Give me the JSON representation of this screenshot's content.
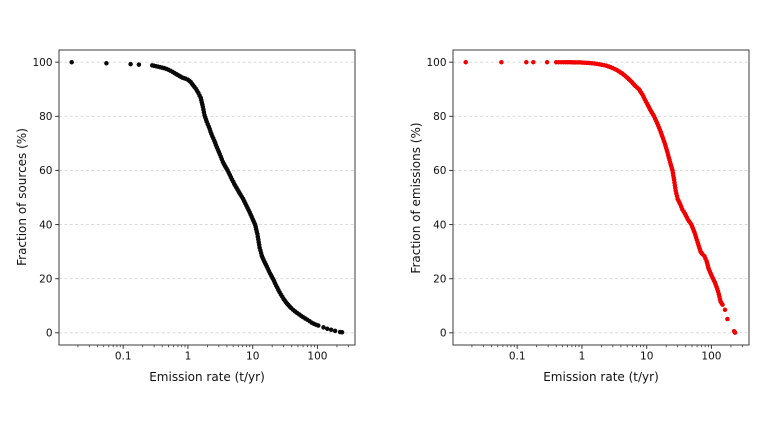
{
  "figure": {
    "background": "#ffffff",
    "grid_color": "#d5d5d5",
    "spine_color": "#3d3d3d",
    "tick_label_color": "#111111"
  },
  "chart_data": [
    {
      "type": "scatter",
      "title": "",
      "xlabel": "Emission rate (t/yr)",
      "ylabel": "Fraction of sources (%)",
      "x_scale": "log",
      "xlim": [
        0.0102,
        380
      ],
      "ylim": [
        -4.5,
        104.5
      ],
      "x_major_ticks": [
        0.1,
        1,
        10,
        100
      ],
      "x_major_tick_labels": [
        "0.1",
        "1",
        "10",
        "100"
      ],
      "y_ticks": [
        0,
        20,
        40,
        60,
        80,
        100
      ],
      "y_tick_labels": [
        "0",
        "20",
        "40",
        "60",
        "80",
        "100"
      ],
      "grid": "horizontal-dashed",
      "legend": "none",
      "marker_color": "#0a0a0a",
      "marker_size_px": 4.5,
      "dense_range": [
        0.27,
        101
      ],
      "points": [
        [
          0.016,
          100
        ],
        [
          0.055,
          99.6
        ],
        [
          0.13,
          99.3
        ],
        [
          0.175,
          99.1
        ],
        [
          0.28,
          98.8
        ],
        [
          0.32,
          98.5
        ],
        [
          0.37,
          98.2
        ],
        [
          0.43,
          97.8
        ],
        [
          0.5,
          97.2
        ],
        [
          0.58,
          96.4
        ],
        [
          0.66,
          95.6
        ],
        [
          0.74,
          94.9
        ],
        [
          0.82,
          94.3
        ],
        [
          0.92,
          93.9
        ],
        [
          1.0,
          93.5
        ],
        [
          1.1,
          92.7
        ],
        [
          1.2,
          91.5
        ],
        [
          1.32,
          90.2
        ],
        [
          1.45,
          88.6
        ],
        [
          1.58,
          86.8
        ],
        [
          1.7,
          83.5
        ],
        [
          1.8,
          80.5
        ],
        [
          1.95,
          78.0
        ],
        [
          2.1,
          76.2
        ],
        [
          2.3,
          73.5
        ],
        [
          2.55,
          71.0
        ],
        [
          2.8,
          68.5
        ],
        [
          3.1,
          66.0
        ],
        [
          3.45,
          63.2
        ],
        [
          3.8,
          61.3
        ],
        [
          4.1,
          60.0
        ],
        [
          4.6,
          57.5
        ],
        [
          5.2,
          55.0
        ],
        [
          5.8,
          53.0
        ],
        [
          6.5,
          51.0
        ],
        [
          7.1,
          49.5
        ],
        [
          8.0,
          47.0
        ],
        [
          9.0,
          44.5
        ],
        [
          10.0,
          42.0
        ],
        [
          10.9,
          40.0
        ],
        [
          11.8,
          36.5
        ],
        [
          12.8,
          31.5
        ],
        [
          13.8,
          28.5
        ],
        [
          15.0,
          26.5
        ],
        [
          16.5,
          24.5
        ],
        [
          18.5,
          22.0
        ],
        [
          20.5,
          20.0
        ],
        [
          23.0,
          17.5
        ],
        [
          26.0,
          15.0
        ],
        [
          30.0,
          12.5
        ],
        [
          34.0,
          10.8
        ],
        [
          39.0,
          9.2
        ],
        [
          45.0,
          7.9
        ],
        [
          52.0,
          6.8
        ],
        [
          60.0,
          5.8
        ],
        [
          70.0,
          4.8
        ],
        [
          82.0,
          3.7
        ],
        [
          95.0,
          3.0
        ],
        [
          103,
          2.7
        ],
        [
          124,
          2.0
        ],
        [
          142,
          1.5
        ],
        [
          163,
          1.1
        ],
        [
          187,
          0.7
        ],
        [
          224,
          0.3
        ],
        [
          240,
          0.2
        ]
      ]
    },
    {
      "type": "scatter",
      "title": "",
      "xlabel": "Emission rate (t/yr)",
      "ylabel": "Fraction of emissions (%)",
      "x_scale": "log",
      "xlim": [
        0.0102,
        380
      ],
      "ylim": [
        -4.5,
        104.5
      ],
      "x_major_ticks": [
        0.1,
        1,
        10,
        100
      ],
      "x_major_tick_labels": [
        "0.1",
        "1",
        "10",
        "100"
      ],
      "y_ticks": [
        0,
        20,
        40,
        60,
        80,
        100
      ],
      "y_tick_labels": [
        "0",
        "20",
        "40",
        "60",
        "80",
        "100"
      ],
      "grid": "horizontal-dashed",
      "legend": "none",
      "marker_color": "#f10000",
      "marker_size_px": 4.5,
      "dense_range": [
        0.38,
        152
      ],
      "points": [
        [
          0.016,
          100
        ],
        [
          0.057,
          100
        ],
        [
          0.138,
          100
        ],
        [
          0.177,
          100
        ],
        [
          0.29,
          100
        ],
        [
          0.4,
          100
        ],
        [
          0.52,
          100
        ],
        [
          0.65,
          100
        ],
        [
          0.8,
          99.9
        ],
        [
          0.95,
          99.9
        ],
        [
          1.1,
          99.8
        ],
        [
          1.3,
          99.7
        ],
        [
          1.55,
          99.5
        ],
        [
          1.85,
          99.2
        ],
        [
          2.2,
          98.9
        ],
        [
          2.6,
          98.4
        ],
        [
          3.0,
          97.8
        ],
        [
          3.5,
          97.0
        ],
        [
          4.2,
          95.8
        ],
        [
          5.0,
          94.3
        ],
        [
          5.8,
          92.8
        ],
        [
          6.7,
          91.2
        ],
        [
          7.6,
          90.0
        ],
        [
          8.6,
          88.0
        ],
        [
          9.7,
          85.5
        ],
        [
          10.5,
          84.0
        ],
        [
          11.6,
          82.0
        ],
        [
          13.0,
          80.0
        ],
        [
          14.5,
          77.5
        ],
        [
          16.0,
          75.0
        ],
        [
          17.5,
          72.5
        ],
        [
          19.0,
          70.0
        ],
        [
          21.0,
          66.5
        ],
        [
          23.0,
          63.0
        ],
        [
          25.0,
          60.0
        ],
        [
          26.5,
          56.5
        ],
        [
          28.0,
          52.5
        ],
        [
          30.0,
          49.5
        ],
        [
          33.0,
          47.5
        ],
        [
          35.5,
          45.6
        ],
        [
          39.0,
          44.0
        ],
        [
          43.0,
          42.0
        ],
        [
          49.0,
          40.0
        ],
        [
          55.0,
          37.0
        ],
        [
          61.0,
          33.5
        ],
        [
          65.0,
          31.5
        ],
        [
          68.0,
          30.0
        ],
        [
          73.0,
          29.0
        ],
        [
          78.0,
          28.3
        ],
        [
          84.0,
          26.5
        ],
        [
          91.0,
          23.5
        ],
        [
          103,
          20.6
        ],
        [
          113,
          18.6
        ],
        [
          123,
          16.2
        ],
        [
          130,
          14.3
        ],
        [
          138,
          11.6
        ],
        [
          148,
          10.4
        ],
        [
          162,
          8.5
        ],
        [
          176,
          5.1
        ],
        [
          224,
          0.6
        ],
        [
          232,
          0.1
        ]
      ]
    }
  ]
}
